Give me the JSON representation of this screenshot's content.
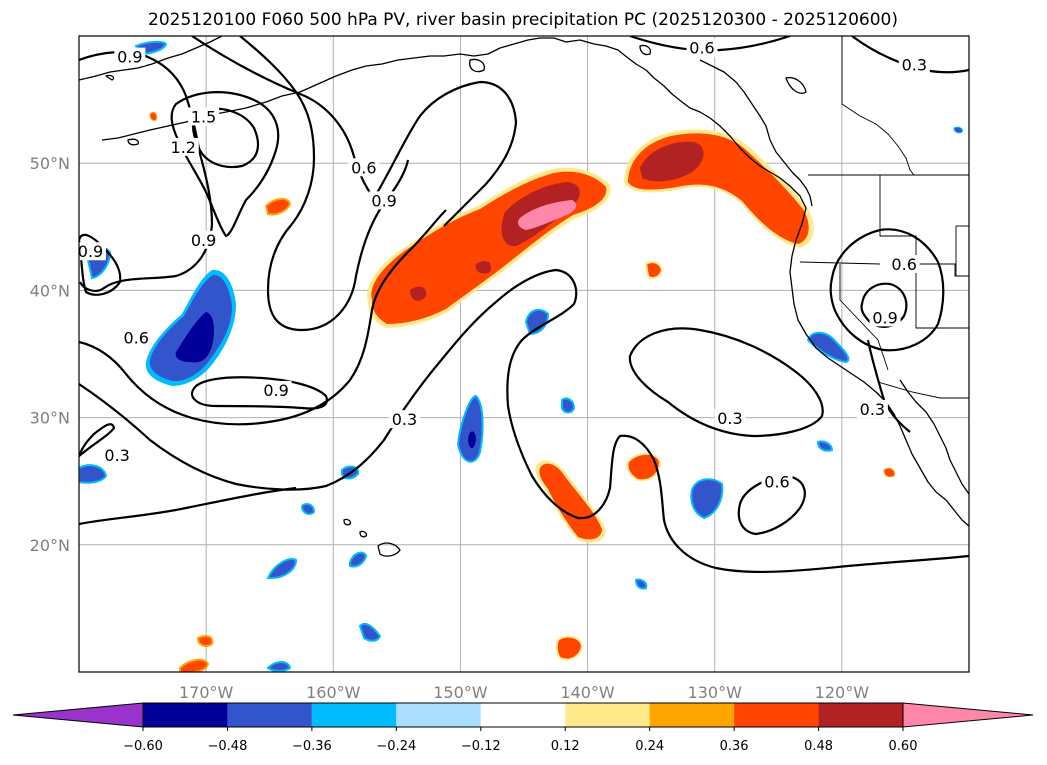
{
  "title": "2025120100 F060 500 hPa PV, river basin precipitation PC (2025120300 - 2025120600)",
  "map": {
    "extent": {
      "lon_min": -180,
      "lon_max": -110,
      "lat_min": 10,
      "lat_max": 60
    },
    "lon_ticks": [
      {
        "lon": -170,
        "label": "170°W"
      },
      {
        "lon": -160,
        "label": "160°W"
      },
      {
        "lon": -150,
        "label": "150°W"
      },
      {
        "lon": -140,
        "label": "140°W"
      },
      {
        "lon": -130,
        "label": "130°W"
      },
      {
        "lon": -120,
        "label": "120°W"
      }
    ],
    "lat_ticks": [
      {
        "lat": 20,
        "label": "20°N"
      },
      {
        "lat": 30,
        "label": "30°N"
      },
      {
        "lat": 40,
        "label": "40°N"
      },
      {
        "lat": 50,
        "label": "50°N"
      }
    ],
    "gridlines": true,
    "contour_labels": [
      {
        "text": "0.9",
        "lon": -176,
        "lat": 58.3
      },
      {
        "text": "1.5",
        "lon": -170.2,
        "lat": 53.6
      },
      {
        "text": "1.2",
        "lon": -171.8,
        "lat": 51.2
      },
      {
        "text": "0.6",
        "lon": -157.6,
        "lat": 49.6
      },
      {
        "text": "0.9",
        "lon": -156.0,
        "lat": 47.0
      },
      {
        "text": "0.6",
        "lon": -131.0,
        "lat": 59.0
      },
      {
        "text": "0.3",
        "lon": -114.3,
        "lat": 57.7
      },
      {
        "text": "0.9",
        "lon": -170.2,
        "lat": 43.9
      },
      {
        "text": "0.9",
        "lon": -179.1,
        "lat": 43.0
      },
      {
        "text": "0.6",
        "lon": -175.5,
        "lat": 36.2
      },
      {
        "text": "0.9",
        "lon": -164.5,
        "lat": 32.1
      },
      {
        "text": "0.3",
        "lon": -154.4,
        "lat": 29.8
      },
      {
        "text": "0.3",
        "lon": -177.0,
        "lat": 27.0
      },
      {
        "text": "0.3",
        "lon": -128.8,
        "lat": 29.9
      },
      {
        "text": "0.6",
        "lon": -125.1,
        "lat": 24.9
      },
      {
        "text": "0.6",
        "lon": -115.1,
        "lat": 42.0
      },
      {
        "text": "0.9",
        "lon": -116.6,
        "lat": 37.8
      },
      {
        "text": "0.3",
        "lon": -117.6,
        "lat": 30.6
      }
    ]
  },
  "colorbar": {
    "colors": [
      "#9933cc",
      "#000099",
      "#3355cc",
      "#00bbff",
      "#aaddff",
      "#ffffff",
      "#ffe98a",
      "#ffa500",
      "#ff4500",
      "#b22222",
      "#ff88aa"
    ],
    "ticks": [
      "−0.60",
      "−0.48",
      "−0.36",
      "−0.24",
      "−0.12",
      "0.12",
      "0.24",
      "0.36",
      "0.48",
      "0.60"
    ],
    "extend": "both"
  }
}
